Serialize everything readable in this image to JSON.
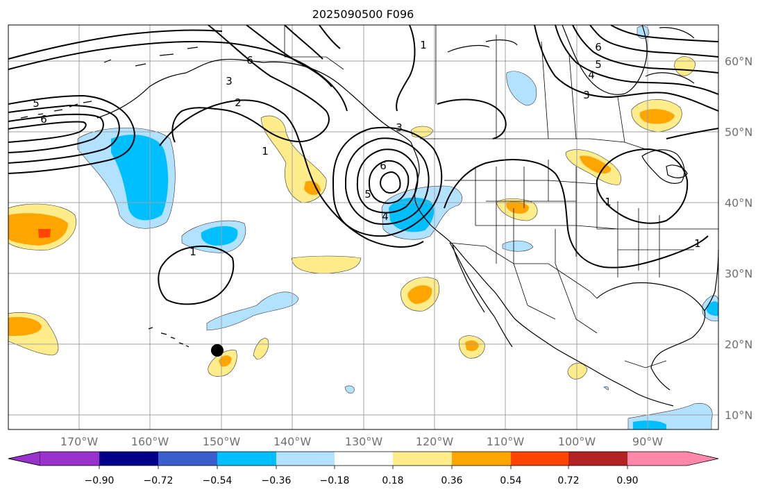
{
  "title": "2025090500 F096",
  "map": {
    "lon_labels": [
      "170°W",
      "160°W",
      "150°W",
      "140°W",
      "130°W",
      "120°W",
      "110°W",
      "100°W",
      "90°W"
    ],
    "lat_labels": [
      "60°N",
      "50°N",
      "40°N",
      "30°N",
      "20°N",
      "10°N"
    ],
    "contour_labels": [
      "5",
      "6",
      "6",
      "3",
      "2",
      "1",
      "3",
      "6",
      "5",
      "4",
      "1",
      "1",
      "6",
      "5",
      "4",
      "3",
      "1",
      "1"
    ]
  },
  "colorbar": {
    "ticks": [
      "−0.90",
      "−0.72",
      "−0.54",
      "−0.36",
      "−0.18",
      "0.18",
      "0.36",
      "0.54",
      "0.72",
      "0.90"
    ],
    "colors": [
      "#9932cc",
      "#00008b",
      "#3a5fcd",
      "#00bfff",
      "#b2e2ff",
      "#ffffff",
      "#ffec8b",
      "#ffa500",
      "#ff4500",
      "#b22222",
      "#ff88aa"
    ]
  },
  "colors": {
    "neg_light": "#b2e2ff",
    "neg_mid": "#00bfff",
    "pos_light": "#ffec8b",
    "pos_mid": "#ffa500",
    "pos_strong": "#ff4500"
  }
}
